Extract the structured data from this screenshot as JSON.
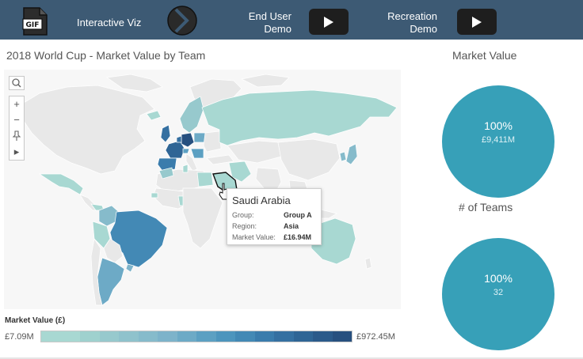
{
  "header": {
    "viz_label": "Interactive Viz",
    "user_demo_line1": "End User",
    "user_demo_line2": "Demo",
    "recreation_line1": "Recreation",
    "recreation_line2": "Demo",
    "gif_label": "GIF",
    "background_color": "#3d5a74"
  },
  "map": {
    "title": "2018 World Cup - Market Value by Team",
    "tools": [
      "search-icon",
      "zoom-in-icon",
      "zoom-out-icon",
      "pin-icon",
      "expand-arrow-icon"
    ],
    "tool_glyphs": {
      "zoom_in": "+",
      "zoom_out": "−",
      "expand": "▸"
    }
  },
  "tooltip": {
    "country": "Saudi Arabia",
    "group_label": "Group:",
    "group_value": "Group A",
    "region_label": "Region:",
    "region_value": "Asia",
    "market_label": "Market Value:",
    "market_value": "£16.94M"
  },
  "legend": {
    "title": "Market Value (£)",
    "min": "£7.09M",
    "max": "£972.45M",
    "colors": [
      "#a8d8d2",
      "#a8d8d2",
      "#9fd1ce",
      "#97c9cd",
      "#8fc2cc",
      "#86bbcb",
      "#7db3ca",
      "#6daac6",
      "#5ca0c2",
      "#4d95bd",
      "#4389b5",
      "#3a7cac",
      "#3570a1",
      "#2f6595",
      "#2b5a8a",
      "#27507f"
    ]
  },
  "kpis": {
    "market_value": {
      "title": "Market Value",
      "percent": "100%",
      "value": "£9,411M"
    },
    "teams": {
      "title": "# of Teams",
      "percent": "100%",
      "value": "32"
    }
  },
  "colors": {
    "kpi_circle": "#37a0b8",
    "land_default": "#e8e8e8",
    "land_low": "#a8d8d2",
    "land_high": "#3c6394"
  }
}
